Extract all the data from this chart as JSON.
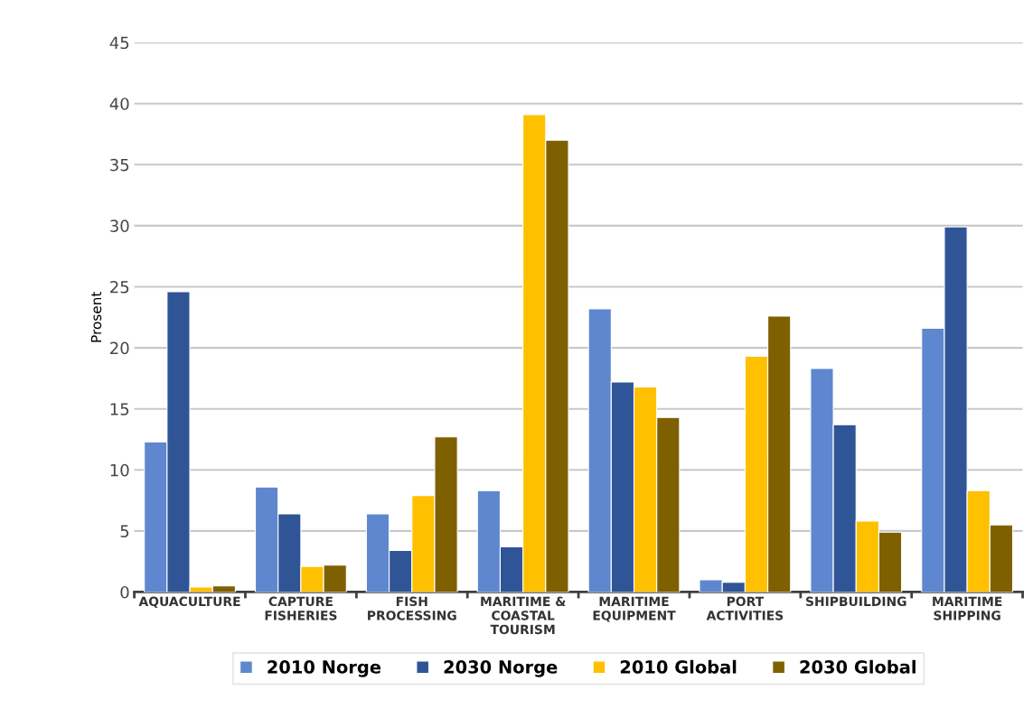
{
  "chart_data": {
    "type": "bar",
    "ylabel": "Prosent",
    "categories": [
      "AQUACULTURE",
      "CAPTURE\nFISHERIES",
      "FISH\nPROCESSING",
      "MARITIME &\nCOASTAL\nTOURISM",
      "MARITIME\nEQUIPMENT",
      "PORT\nACTIVITIES",
      "SHIPBUILDING",
      "MARITIME\nSHIPPING"
    ],
    "series": [
      {
        "name": "2010 Norge",
        "color": "#5f87cf",
        "values": [
          12.3,
          8.6,
          6.4,
          8.3,
          23.2,
          1.0,
          18.3,
          21.6
        ]
      },
      {
        "name": "2030 Norge",
        "color": "#2f5597",
        "values": [
          24.6,
          6.4,
          3.4,
          3.7,
          17.2,
          0.8,
          13.7,
          29.9
        ]
      },
      {
        "name": "2010 Global",
        "color": "#ffc000",
        "values": [
          0.4,
          2.1,
          7.9,
          39.1,
          16.8,
          19.3,
          5.8,
          8.3
        ]
      },
      {
        "name": "2030 Global",
        "color": "#7f6000",
        "values": [
          0.5,
          2.2,
          12.7,
          37.0,
          14.3,
          22.6,
          4.9,
          5.5
        ]
      }
    ],
    "ylim": [
      0,
      45
    ],
    "yticks": [
      0,
      5,
      10,
      15,
      20,
      25,
      30,
      35,
      40,
      45
    ],
    "grid": "y",
    "legend": "bottom"
  }
}
